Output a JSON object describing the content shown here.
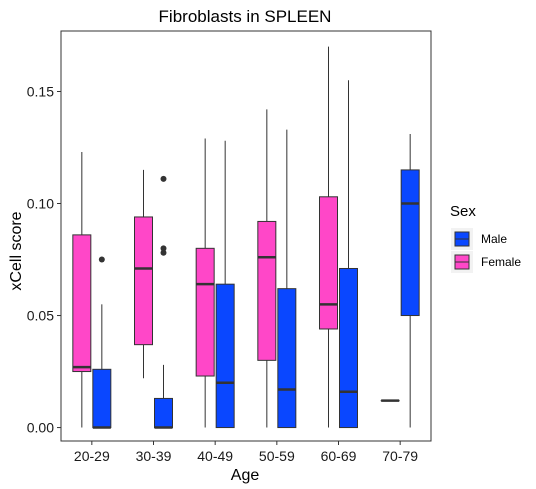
{
  "chart_data": {
    "type": "boxplot",
    "title": "Fibroblasts in SPLEEN",
    "xlabel": "Age",
    "ylabel": "xCell score",
    "ylim": [
      -0.006,
      0.177
    ],
    "yticks": [
      0.0,
      0.05,
      0.1,
      0.15
    ],
    "ytick_labels": [
      "0.00",
      "0.05",
      "0.10",
      "0.15"
    ],
    "categories": [
      "20-29",
      "30-39",
      "40-49",
      "50-59",
      "60-69",
      "70-79"
    ],
    "grid": false,
    "legend": {
      "title": "Sex",
      "position": "right",
      "entries": [
        {
          "name": "Male",
          "color": "#0A47FF"
        },
        {
          "name": "Female",
          "color": "#FF47C8"
        }
      ]
    },
    "series": [
      {
        "name": "Female",
        "color": "#FF47C8",
        "boxes": [
          {
            "category": "20-29",
            "whisker_low": 0.0,
            "q1": 0.025,
            "median": 0.027,
            "q3": 0.086,
            "whisker_high": 0.123,
            "outliers": []
          },
          {
            "category": "30-39",
            "whisker_low": 0.022,
            "q1": 0.037,
            "median": 0.071,
            "q3": 0.094,
            "whisker_high": 0.115,
            "outliers": []
          },
          {
            "category": "40-49",
            "whisker_low": 0.0,
            "q1": 0.023,
            "median": 0.064,
            "q3": 0.08,
            "whisker_high": 0.129,
            "outliers": []
          },
          {
            "category": "50-59",
            "whisker_low": 0.0,
            "q1": 0.03,
            "median": 0.076,
            "q3": 0.092,
            "whisker_high": 0.142,
            "outliers": []
          },
          {
            "category": "60-69",
            "whisker_low": 0.0,
            "q1": 0.044,
            "median": 0.055,
            "q3": 0.103,
            "whisker_high": 0.17,
            "outliers": []
          },
          {
            "category": "70-79",
            "whisker_low": 0.012,
            "q1": 0.012,
            "median": 0.012,
            "q3": 0.012,
            "whisker_high": 0.012,
            "outliers": []
          }
        ]
      },
      {
        "name": "Male",
        "color": "#0A47FF",
        "boxes": [
          {
            "category": "20-29",
            "whisker_low": 0.0,
            "q1": 0.0,
            "median": 0.0,
            "q3": 0.026,
            "whisker_high": 0.055,
            "outliers": [
              0.075
            ]
          },
          {
            "category": "30-39",
            "whisker_low": 0.0,
            "q1": 0.0,
            "median": 0.0,
            "q3": 0.013,
            "whisker_high": 0.028,
            "outliers": [
              0.078,
              0.08,
              0.111
            ]
          },
          {
            "category": "40-49",
            "whisker_low": 0.0,
            "q1": 0.0,
            "median": 0.02,
            "q3": 0.064,
            "whisker_high": 0.128,
            "outliers": []
          },
          {
            "category": "50-59",
            "whisker_low": 0.0,
            "q1": 0.0,
            "median": 0.017,
            "q3": 0.062,
            "whisker_high": 0.133,
            "outliers": []
          },
          {
            "category": "60-69",
            "whisker_low": 0.0,
            "q1": 0.0,
            "median": 0.016,
            "q3": 0.071,
            "whisker_high": 0.155,
            "outliers": []
          },
          {
            "category": "70-79",
            "whisker_low": 0.0,
            "q1": 0.05,
            "median": 0.1,
            "q3": 0.115,
            "whisker_high": 0.131,
            "outliers": []
          }
        ]
      }
    ]
  }
}
